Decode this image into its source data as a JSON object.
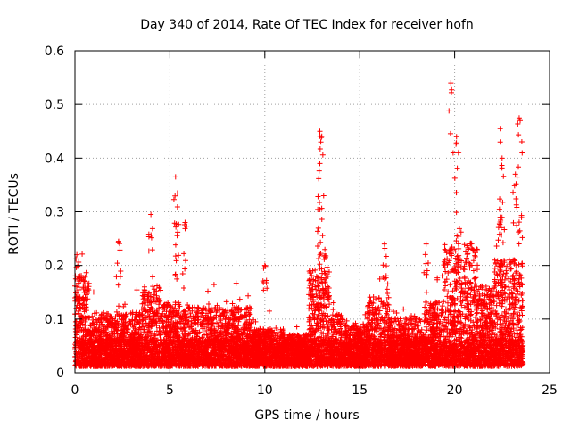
{
  "chart_data": {
    "type": "scatter",
    "title": "Day 340 of 2014, Rate Of TEC Index for receiver hofn",
    "xlabel": "GPS time / hours",
    "ylabel": "ROTI / TECUs",
    "xlim": [
      0,
      25
    ],
    "ylim": [
      0,
      0.6
    ],
    "xticks": [
      0,
      5,
      10,
      15,
      20,
      25
    ],
    "xtick_labels": [
      "0",
      "5",
      "10",
      "15",
      "20",
      "25"
    ],
    "yticks": [
      0,
      0.1,
      0.2,
      0.3,
      0.4,
      0.5,
      0.6
    ],
    "ytick_labels": [
      "0",
      "0.1",
      "0.2",
      "0.3",
      "0.4",
      "0.5",
      "0.6"
    ],
    "grid": true,
    "marker": "plus",
    "color": "#ff0000",
    "series": [
      {
        "name": "ROTI",
        "x_range": [
          0,
          23.6
        ],
        "typical_range": [
          0.02,
          0.15
        ],
        "peaks": [
          {
            "x": 0.1,
            "y": 0.22
          },
          {
            "x": 2.3,
            "y": 0.245
          },
          {
            "x": 4.0,
            "y": 0.295
          },
          {
            "x": 5.3,
            "y": 0.365
          },
          {
            "x": 5.4,
            "y": 0.335
          },
          {
            "x": 5.8,
            "y": 0.28
          },
          {
            "x": 10.0,
            "y": 0.2
          },
          {
            "x": 12.9,
            "y": 0.45
          },
          {
            "x": 12.95,
            "y": 0.43
          },
          {
            "x": 12.9,
            "y": 0.39
          },
          {
            "x": 13.1,
            "y": 0.33
          },
          {
            "x": 16.3,
            "y": 0.24
          },
          {
            "x": 18.5,
            "y": 0.24
          },
          {
            "x": 19.8,
            "y": 0.54
          },
          {
            "x": 20.1,
            "y": 0.44
          },
          {
            "x": 20.2,
            "y": 0.41
          },
          {
            "x": 22.4,
            "y": 0.455
          },
          {
            "x": 22.4,
            "y": 0.43
          },
          {
            "x": 22.5,
            "y": 0.4
          },
          {
            "x": 23.4,
            "y": 0.475
          },
          {
            "x": 23.45,
            "y": 0.47
          },
          {
            "x": 23.2,
            "y": 0.37
          }
        ]
      }
    ]
  }
}
